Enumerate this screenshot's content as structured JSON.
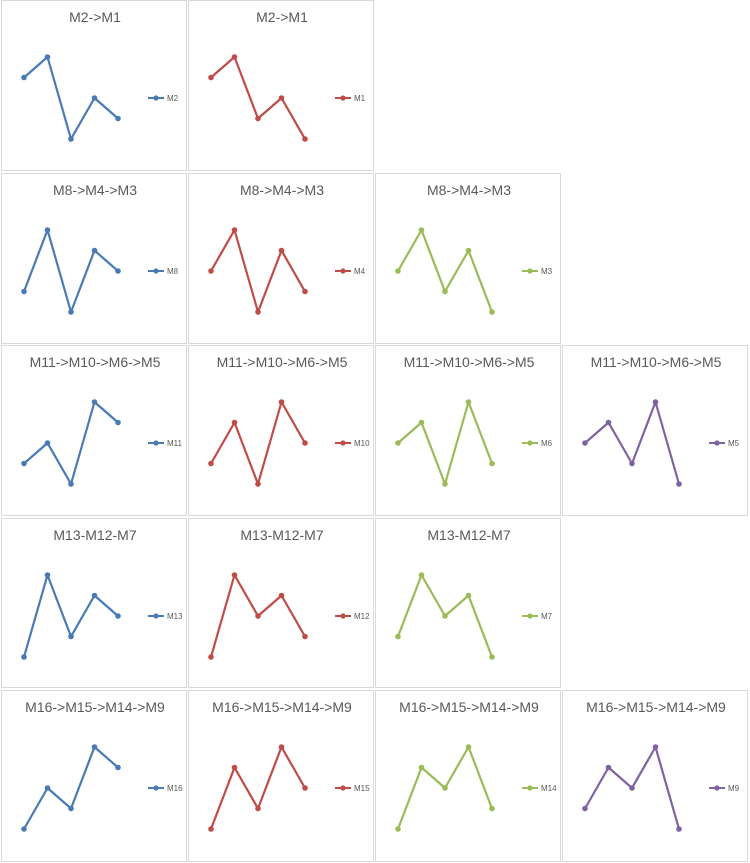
{
  "colors": {
    "blue": "#4a7ab5",
    "red": "#bf4c48",
    "green": "#9bbb59",
    "purple": "#7f62a1"
  },
  "chart_data": [
    {
      "type": "line",
      "title": "M2->M1",
      "legend": "M2",
      "color": "blue",
      "values": [
        3,
        4,
        0,
        2,
        1
      ],
      "ylim": [
        0,
        4
      ]
    },
    {
      "type": "line",
      "title": "M2->M1",
      "legend": "M1",
      "color": "red",
      "values": [
        3,
        4,
        1,
        2,
        0
      ],
      "ylim": [
        0,
        4
      ]
    },
    {
      "type": "line",
      "title": "M8->M4->M3",
      "legend": "M8",
      "color": "blue",
      "values": [
        1,
        4,
        0,
        3,
        2
      ],
      "ylim": [
        0,
        4
      ]
    },
    {
      "type": "line",
      "title": "M8->M4->M3",
      "legend": "M4",
      "color": "red",
      "values": [
        2,
        4,
        0,
        3,
        1
      ],
      "ylim": [
        0,
        4
      ]
    },
    {
      "type": "line",
      "title": "M8->M4->M3",
      "legend": "M3",
      "color": "green",
      "values": [
        2,
        4,
        1,
        3,
        0
      ],
      "ylim": [
        0,
        4
      ]
    },
    {
      "type": "line",
      "title": "M11->M10->M6->M5",
      "legend": "M11",
      "color": "blue",
      "values": [
        1,
        2,
        0,
        4,
        3
      ],
      "ylim": [
        0,
        4
      ]
    },
    {
      "type": "line",
      "title": "M11->M10->M6->M5",
      "legend": "M10",
      "color": "red",
      "values": [
        1,
        3,
        0,
        4,
        2
      ],
      "ylim": [
        0,
        4
      ]
    },
    {
      "type": "line",
      "title": "M11->M10->M6->M5",
      "legend": "M6",
      "color": "green",
      "values": [
        2,
        3,
        0,
        4,
        1
      ],
      "ylim": [
        0,
        4
      ]
    },
    {
      "type": "line",
      "title": "M11->M10->M6->M5",
      "legend": "M5",
      "color": "purple",
      "values": [
        2,
        3,
        1,
        4,
        0
      ],
      "ylim": [
        0,
        4
      ]
    },
    {
      "type": "line",
      "title": "M13-M12-M7",
      "legend": "M13",
      "color": "blue",
      "values": [
        0,
        4,
        1,
        3,
        2
      ],
      "ylim": [
        0,
        4
      ]
    },
    {
      "type": "line",
      "title": "M13-M12-M7",
      "legend": "M12",
      "color": "red",
      "values": [
        0,
        4,
        2,
        3,
        1
      ],
      "ylim": [
        0,
        4
      ]
    },
    {
      "type": "line",
      "title": "M13-M12-M7",
      "legend": "M7",
      "color": "green",
      "values": [
        1,
        4,
        2,
        3,
        0
      ],
      "ylim": [
        0,
        4
      ]
    },
    {
      "type": "line",
      "title": "M16->M15->M14->M9",
      "legend": "M16",
      "color": "blue",
      "values": [
        0,
        2,
        1,
        4,
        3
      ],
      "ylim": [
        0,
        4
      ]
    },
    {
      "type": "line",
      "title": "M16->M15->M14->M9",
      "legend": "M15",
      "color": "red",
      "values": [
        0,
        3,
        1,
        4,
        2
      ],
      "ylim": [
        0,
        4
      ]
    },
    {
      "type": "line",
      "title": "M16->M15->M14->M9",
      "legend": "M14",
      "color": "green",
      "values": [
        0,
        3,
        2,
        4,
        1
      ],
      "ylim": [
        0,
        4
      ]
    },
    {
      "type": "line",
      "title": "M16->M15->M14->M9",
      "legend": "M9",
      "color": "purple",
      "values": [
        1,
        3,
        2,
        4,
        0
      ],
      "ylim": [
        0,
        4
      ]
    }
  ]
}
